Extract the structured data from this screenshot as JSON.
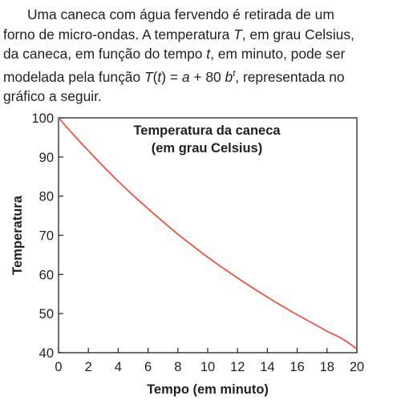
{
  "problem": {
    "line1": "Uma caneca com água fervendo é retirada de um",
    "line2": "forno de micro-ondas. A temperatura T, em grau Celsius,",
    "line3": "da caneca, em função do tempo t, em minuto, pode ser",
    "line4": "modelada pela função T(t) = a + 80 b",
    "line4_sup": "t",
    "line4_tail": ", representada no",
    "line5": "gráfico a seguir."
  },
  "chart_data": {
    "type": "line",
    "title_lines": [
      "Temperatura da caneca",
      "(em grau Celsius)"
    ],
    "xlabel": "Tempo (em minuto)",
    "ylabel": "Temperatura",
    "xlim": [
      0,
      20
    ],
    "ylim": [
      40,
      100
    ],
    "x_ticks": [
      0,
      2,
      4,
      6,
      8,
      10,
      12,
      14,
      16,
      18,
      20
    ],
    "y_ticks": [
      40,
      50,
      60,
      70,
      80,
      90,
      100
    ],
    "grid": false,
    "series": [
      {
        "color": "#e8553e",
        "x": [
          0,
          1,
          2,
          3,
          4,
          5,
          6,
          7,
          8,
          9,
          10,
          11,
          12,
          13,
          14,
          15,
          16,
          17,
          18,
          19,
          20
        ],
        "y": [
          100,
          95.7,
          91.6,
          87.6,
          83.8,
          80.2,
          76.8,
          73.5,
          70.3,
          67.3,
          64.4,
          61.7,
          59.1,
          56.6,
          54.2,
          51.9,
          49.7,
          47.6,
          45.5,
          43.6,
          41.0
        ]
      }
    ]
  }
}
